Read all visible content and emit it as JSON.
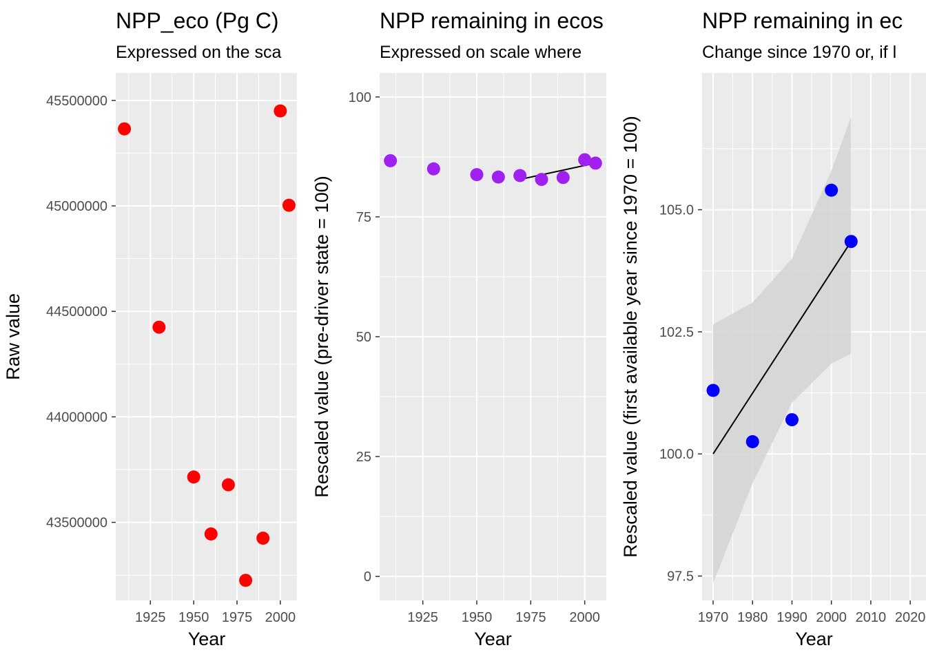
{
  "chart_data": [
    {
      "type": "scatter",
      "title": "NPP_eco (Pg C)",
      "subtitle": "Expressed on the sca",
      "xlabel": "Year",
      "ylabel": "Raw value",
      "xlim": [
        1905,
        2010
      ],
      "ylim": [
        43130000,
        45630000
      ],
      "x_ticks": [
        1925,
        1950,
        1975,
        2000
      ],
      "y_ticks": [
        43500000,
        44000000,
        44500000,
        45000000,
        45500000
      ],
      "grid": true,
      "series": [
        {
          "color": "#ff0000",
          "x": [
            1910,
            1930,
            1950,
            1960,
            1970,
            1980,
            1990,
            2000,
            2005
          ],
          "y": [
            45365000,
            44425000,
            43715000,
            43445000,
            43678000,
            43225000,
            43425000,
            45450000,
            45003000
          ]
        }
      ]
    },
    {
      "type": "scatter",
      "title": "NPP remaining in ecos",
      "subtitle": "Expressed on scale where",
      "xlabel": "Year",
      "ylabel": "Rescaled value (pre-driver state = 100)",
      "xlim": [
        1905,
        2010
      ],
      "ylim": [
        -5,
        105
      ],
      "x_ticks": [
        1925,
        1950,
        1975,
        2000
      ],
      "y_ticks": [
        0,
        25,
        50,
        75,
        100
      ],
      "grid": true,
      "series": [
        {
          "color": "#a020f0",
          "x": [
            1910,
            1930,
            1950,
            1960,
            1970,
            1980,
            1990,
            2000,
            2005
          ],
          "y": [
            86.7,
            85.0,
            83.8,
            83.3,
            83.6,
            82.8,
            83.2,
            86.9,
            86.2
          ]
        }
      ],
      "trend": {
        "color": "#000000",
        "x": [
          1970,
          2005
        ],
        "y": [
          82.8,
          86.2
        ]
      }
    },
    {
      "type": "scatter",
      "title": "NPP remaining in ec",
      "subtitle": "Change since 1970 or, if l",
      "xlabel": "Year",
      "ylabel": "Rescaled value (first available year since 1970 = 100)",
      "xlim": [
        1967.2,
        2024
      ],
      "ylim": [
        97.0,
        107.8
      ],
      "x_ticks": [
        1970,
        1980,
        1990,
        2000,
        2010,
        2020
      ],
      "y_ticks": [
        97.5,
        100.0,
        102.5,
        105.0
      ],
      "y_tick_labels": [
        "97.5",
        "100.0",
        "102.5",
        "105.0"
      ],
      "grid": true,
      "series": [
        {
          "color": "#0000ff",
          "x": [
            1970,
            1980,
            1990,
            2000,
            2005
          ],
          "y": [
            101.3,
            100.25,
            100.7,
            105.4,
            104.35
          ]
        }
      ],
      "trend": {
        "color": "#000000",
        "x": [
          1970,
          2005
        ],
        "y": [
          100.0,
          104.35
        ]
      },
      "confidence_band": {
        "color": "#d3d3d3",
        "x": [
          1970,
          1980,
          1990,
          2000,
          2005
        ],
        "upper": [
          102.65,
          103.1,
          104.0,
          105.8,
          106.9
        ],
        "lower": [
          97.35,
          99.4,
          101.05,
          101.85,
          102.05
        ]
      }
    }
  ]
}
